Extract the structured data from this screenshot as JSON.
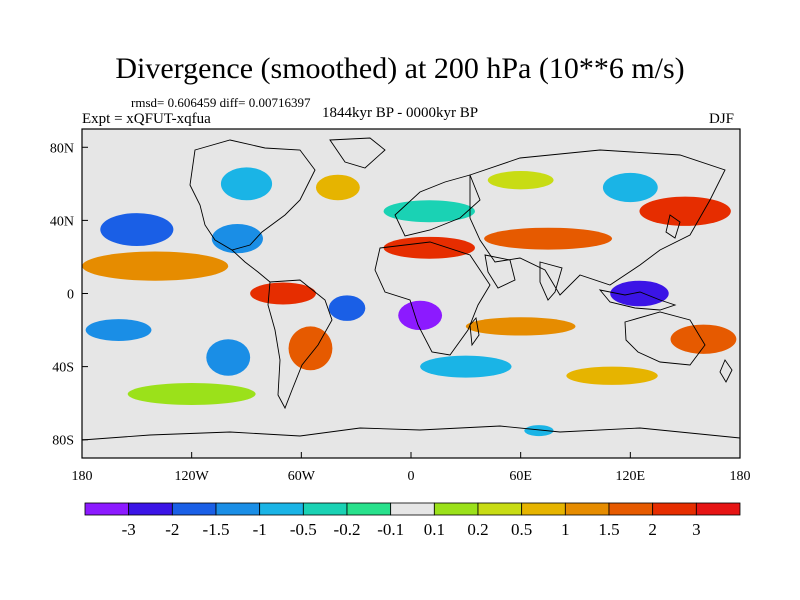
{
  "title": "Divergence (smoothed) at 200 hPa (10**6 m/s)",
  "stats": "rmsd= 0.606459 diff= 0.00716397",
  "experiment": "Expt = xQFUT-xqfua",
  "period": "1844kyr BP - 0000kyr BP",
  "season": "DJF",
  "map": {
    "projection": "cylindrical-equidistant",
    "lon_range": [
      -180,
      180
    ],
    "lat_range": [
      -90,
      90
    ],
    "x_ticks": [
      {
        "value": -180,
        "label": "180"
      },
      {
        "value": -120,
        "label": "120W"
      },
      {
        "value": -60,
        "label": "60W"
      },
      {
        "value": 0,
        "label": "0"
      },
      {
        "value": 60,
        "label": "60E"
      },
      {
        "value": 120,
        "label": "120E"
      },
      {
        "value": 180,
        "label": "180"
      }
    ],
    "y_ticks": [
      {
        "value": 80,
        "label": "80N"
      },
      {
        "value": 40,
        "label": "40N"
      },
      {
        "value": 0,
        "label": "0"
      },
      {
        "value": -40,
        "label": "40S"
      },
      {
        "value": -80,
        "label": "80S"
      }
    ],
    "neutral_color": "#e6e6e6",
    "regions": [
      {
        "lon": -150,
        "lat": 35,
        "rx": 20,
        "ry": 9,
        "level": 2
      },
      {
        "lon": -95,
        "lat": 30,
        "rx": 14,
        "ry": 8,
        "level": 3
      },
      {
        "lon": -90,
        "lat": 60,
        "rx": 14,
        "ry": 9,
        "level": 4
      },
      {
        "lon": -40,
        "lat": 58,
        "rx": 12,
        "ry": 7,
        "level": 10
      },
      {
        "lon": 10,
        "lat": 45,
        "rx": 25,
        "ry": 6,
        "level": 5
      },
      {
        "lon": 60,
        "lat": 62,
        "rx": 18,
        "ry": 5,
        "level": 9
      },
      {
        "lon": 120,
        "lat": 58,
        "rx": 15,
        "ry": 8,
        "level": 4
      },
      {
        "lon": 150,
        "lat": 45,
        "rx": 25,
        "ry": 8,
        "level": 13
      },
      {
        "lon": 75,
        "lat": 30,
        "rx": 35,
        "ry": 6,
        "level": 12
      },
      {
        "lon": 10,
        "lat": 25,
        "rx": 25,
        "ry": 6,
        "level": 13
      },
      {
        "lon": -140,
        "lat": 15,
        "rx": 40,
        "ry": 8,
        "level": 11
      },
      {
        "lon": -70,
        "lat": 0,
        "rx": 18,
        "ry": 6,
        "level": 13
      },
      {
        "lon": 125,
        "lat": 0,
        "rx": 16,
        "ry": 7,
        "level": 1
      },
      {
        "lon": 5,
        "lat": -12,
        "rx": 12,
        "ry": 8,
        "level": 0
      },
      {
        "lon": -35,
        "lat": -8,
        "rx": 10,
        "ry": 7,
        "level": 2
      },
      {
        "lon": -160,
        "lat": -20,
        "rx": 18,
        "ry": 6,
        "level": 3
      },
      {
        "lon": -55,
        "lat": -30,
        "rx": 12,
        "ry": 12,
        "level": 12
      },
      {
        "lon": 60,
        "lat": -18,
        "rx": 30,
        "ry": 5,
        "level": 11
      },
      {
        "lon": 160,
        "lat": -25,
        "rx": 18,
        "ry": 8,
        "level": 12
      },
      {
        "lon": -100,
        "lat": -35,
        "rx": 12,
        "ry": 10,
        "level": 3
      },
      {
        "lon": 30,
        "lat": -40,
        "rx": 25,
        "ry": 6,
        "level": 4
      },
      {
        "lon": 110,
        "lat": -45,
        "rx": 25,
        "ry": 5,
        "level": 10
      },
      {
        "lon": -120,
        "lat": -55,
        "rx": 35,
        "ry": 6,
        "level": 8
      },
      {
        "lon": 70,
        "lat": -75,
        "rx": 8,
        "ry": 3,
        "level": 4
      }
    ]
  },
  "colorbar": {
    "colors": [
      "#8c1aff",
      "#3b14e6",
      "#1a5fe6",
      "#1a8ee6",
      "#1ab4e6",
      "#1ad2b4",
      "#28e18c",
      "#e6e6e6",
      "#9be11a",
      "#c8dc14",
      "#e6b400",
      "#e68c00",
      "#e65a00",
      "#e62d00",
      "#e61414"
    ],
    "labels": [
      "-3",
      "-2",
      "-1.5",
      "-1",
      "-0.5",
      "-0.2",
      "-0.1",
      "0.1",
      "0.2",
      "0.5",
      "1",
      "1.5",
      "2",
      "3"
    ]
  }
}
